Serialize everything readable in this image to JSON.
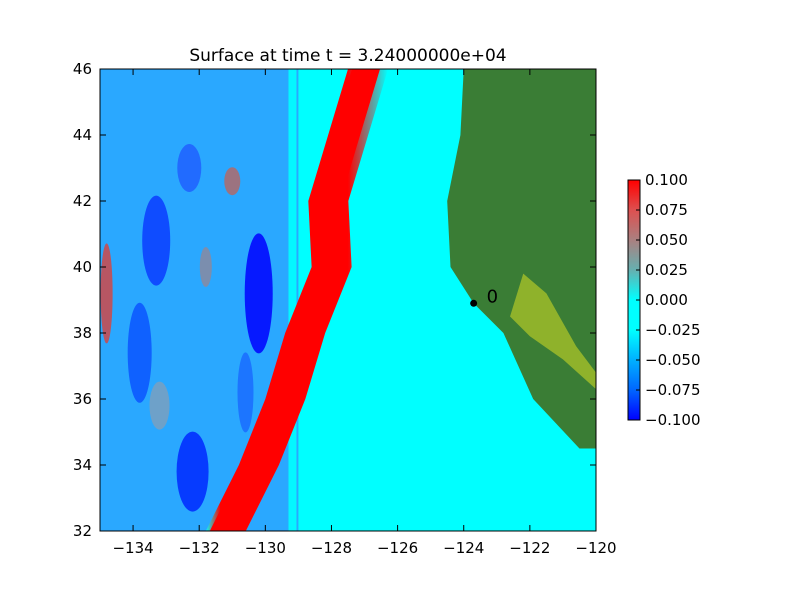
{
  "chart_data": {
    "type": "heatmap",
    "title": "Surface at time t = 3.24000000e+04",
    "xlabel": "",
    "ylabel": "",
    "xlim": [
      -135,
      -120
    ],
    "ylim": [
      32,
      46
    ],
    "x_ticks": [
      -134,
      -132,
      -130,
      -128,
      -126,
      -124,
      -122,
      -120
    ],
    "x_tick_labels": [
      "−134",
      "−132",
      "−130",
      "−128",
      "−126",
      "−124",
      "−122",
      "−120"
    ],
    "y_ticks": [
      32,
      34,
      36,
      38,
      40,
      42,
      44,
      46
    ],
    "y_tick_labels": [
      "32",
      "34",
      "36",
      "38",
      "40",
      "42",
      "44",
      "46"
    ],
    "grid": false,
    "colorbar": {
      "vmin": -0.1,
      "vmax": 0.1,
      "ticks": [
        0.1,
        0.075,
        0.05,
        0.025,
        0.0,
        -0.025,
        -0.05,
        -0.075,
        -0.1
      ],
      "tick_labels": [
        "0.100",
        "0.075",
        "0.050",
        "0.025",
        "0.000",
        "−0.025",
        "−0.050",
        "−0.075",
        "−0.100"
      ],
      "colors": [
        "#0000ff",
        "#0066ff",
        "#00b0ff",
        "#00ffff",
        "#00ffff",
        "#66b0b0",
        "#aa8080",
        "#dd5050",
        "#ff0000"
      ]
    },
    "land_color": "#3a7d35",
    "lowland_color": "#99b82a",
    "water_color": "#00ffff",
    "wave_crest_color": "#ff0000",
    "gauge": {
      "label": "0",
      "lon": -123.7,
      "lat": 38.9
    },
    "wave_front_lon_by_lat": [
      {
        "lat": 46,
        "lon": -127.5
      },
      {
        "lat": 42,
        "lon": -128.7
      },
      {
        "lat": 40,
        "lon": -128.6
      },
      {
        "lat": 38,
        "lon": -129.4
      },
      {
        "lat": 36,
        "lon": -130.0
      },
      {
        "lat": 34,
        "lon": -130.8
      },
      {
        "lat": 32,
        "lon": -131.8
      }
    ],
    "coastline_lon_by_lat": [
      {
        "lat": 46,
        "lon": -124.0
      },
      {
        "lat": 44,
        "lon": -124.1
      },
      {
        "lat": 42,
        "lon": -124.5
      },
      {
        "lat": 40,
        "lon": -124.4
      },
      {
        "lat": 38.9,
        "lon": -123.7
      },
      {
        "lat": 38,
        "lon": -122.8
      },
      {
        "lat": 36,
        "lon": -121.9
      },
      {
        "lat": 34.5,
        "lon": -120.5
      }
    ]
  }
}
